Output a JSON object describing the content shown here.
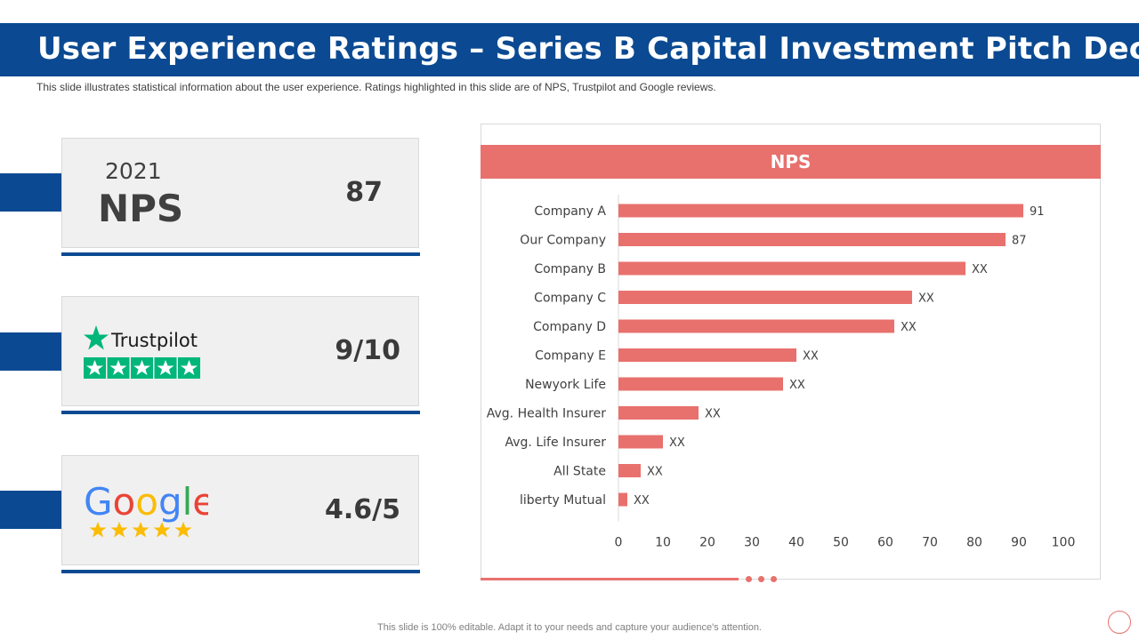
{
  "header": {
    "title": "User Experience Ratings – Series B Capital Investment Pitch Deck",
    "subtitle": "This slide illustrates statistical information about the user experience. Ratings highlighted in this slide are of NPS, Trustpilot and Google reviews."
  },
  "cards": {
    "nps": {
      "year": "2021",
      "label": "NPS",
      "value": "87"
    },
    "trustpilot": {
      "brand": "Trustpilot",
      "value": "9/10",
      "stars": 5
    },
    "google": {
      "brand": "Google",
      "value": "4.6/5",
      "stars": 5
    }
  },
  "chart_data": {
    "type": "bar",
    "orientation": "horizontal",
    "title": "NPS",
    "categories": [
      "Company A",
      "Our Company",
      "Company B",
      "Company C",
      "Company D",
      "Company E",
      "Newyork Life",
      "Avg. Health Insurer",
      "Avg. Life Insurer",
      "All State",
      "liberty Mutual"
    ],
    "values": [
      91,
      87,
      78,
      66,
      62,
      40,
      37,
      18,
      10,
      5,
      2
    ],
    "labels": [
      "91",
      "87",
      "XX",
      "XX",
      "XX",
      "XX",
      "XX",
      "XX",
      "XX",
      "XX",
      "XX"
    ],
    "xlim": [
      0,
      100
    ],
    "xticks": [
      0,
      10,
      20,
      30,
      40,
      50,
      60,
      70,
      80,
      90,
      100
    ],
    "grid": false,
    "bar_color": "#e8716d"
  },
  "footer": {
    "text": "This slide is 100% editable. Adapt it to your needs and capture your audience's attention."
  },
  "colors": {
    "brand_blue": "#0b4a92",
    "accent_red": "#e8716d",
    "trustpilot_green": "#00b67a",
    "star_gold": "#fbbc05"
  }
}
